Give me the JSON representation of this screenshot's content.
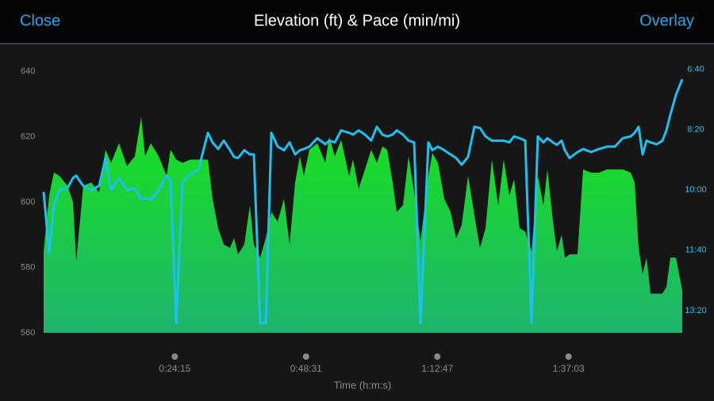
{
  "header": {
    "left_button": "Close",
    "title": "Elevation (ft) & Pace (min/mi)",
    "right_button": "Overlay"
  },
  "chart_data": {
    "type": "area",
    "x_label": "Time (h:m:s)",
    "x": [
      0,
      62,
      114,
      176,
      264,
      326,
      361,
      396,
      440,
      528,
      616,
      686,
      748,
      836,
      924,
      1012,
      1082,
      1126,
      1188,
      1276,
      1364,
      1408,
      1470,
      1540,
      1628,
      1716,
      1822,
      1874,
      1936,
      1998,
      2068,
      2112,
      2156,
      2226,
      2288,
      2332,
      2402,
      2464,
      2526,
      2596,
      2666,
      2728,
      2790,
      2842,
      2886,
      2948,
      3036,
      3124,
      3168,
      3230,
      3300,
      3388,
      3432,
      3494,
      3564,
      3634,
      3696,
      3758,
      3810,
      3872,
      3916,
      3986,
      4048,
      4110,
      4180,
      4268,
      4312,
      4374,
      4444,
      4514,
      4576,
      4638,
      4708,
      4778,
      4840,
      4902,
      4972,
      5042,
      5104,
      5166,
      5218,
      5280,
      5342,
      5412,
      5482,
      5544,
      5588,
      5650,
      5694,
      5746,
      5782,
      5834,
      5922,
      5984,
      6072,
      6160,
      6248,
      6336,
      6424,
      6512,
      6556,
      6600,
      6644,
      6688,
      6732,
      6802,
      6864,
      6908,
      6952,
      7014,
      7084
    ],
    "xlim": [
      0,
      7084
    ],
    "xticks": [
      {
        "value": 1455,
        "label": "0:24:15"
      },
      {
        "value": 2911,
        "label": "0:48:31"
      },
      {
        "value": 4367,
        "label": "1:12:47"
      },
      {
        "value": 5823,
        "label": "1:37:03"
      }
    ],
    "ylim": [
      560,
      640
    ],
    "yticks": [
      560,
      580,
      600,
      620,
      640
    ],
    "y2lim": [
      837,
      403
    ],
    "y2ticks": [
      {
        "value": 400,
        "label": "6:40"
      },
      {
        "value": 500,
        "label": "8:20"
      },
      {
        "value": 600,
        "label": "10:00"
      },
      {
        "value": 700,
        "label": "11:40"
      },
      {
        "value": 800,
        "label": "13:20"
      }
    ],
    "series": [
      {
        "type": "area",
        "color": "#18e21c",
        "values": [
          585,
          602,
          609,
          608,
          605,
          600,
          582,
          592,
          605,
          606,
          603,
          616,
          612,
          618,
          611,
          614,
          626,
          614,
          618,
          614,
          608,
          616,
          613,
          612,
          613,
          613,
          613,
          601,
          592,
          587,
          586,
          589,
          584,
          587,
          599,
          587,
          583,
          589,
          597,
          594,
          601,
          587,
          606,
          614,
          608,
          616,
          618,
          612,
          620,
          614,
          619,
          608,
          613,
          604,
          610,
          616,
          612,
          617,
          616,
          606,
          597,
          599,
          614,
          603,
          588,
          608,
          615,
          612,
          601,
          597,
          589,
          593,
          608,
          596,
          586,
          592,
          613,
          599,
          613,
          602,
          607,
          592,
          591,
          585,
          608,
          599,
          610,
          594,
          585,
          590,
          583,
          584,
          584,
          610,
          609,
          609,
          610,
          610,
          610,
          609,
          606,
          586,
          578,
          583,
          572,
          572,
          572,
          574,
          583,
          583,
          573
        ]
      },
      {
        "type": "line",
        "axis": "y2",
        "color": "#1ec0ee",
        "values": [
          603,
          705,
          626,
          600,
          597,
          580,
          576,
          584,
          593,
          600,
          593,
          547,
          600,
          580,
          600,
          597,
          616,
          613,
          616,
          600,
          576,
          584,
          821,
          587,
          574,
          567,
          505,
          521,
          532,
          518,
          534,
          545,
          547,
          534,
          541,
          541,
          821,
          821,
          505,
          528,
          534,
          521,
          541,
          534,
          532,
          528,
          514,
          524,
          518,
          521,
          501,
          505,
          508,
          501,
          508,
          518,
          495,
          508,
          511,
          508,
          501,
          508,
          518,
          521,
          821,
          521,
          534,
          528,
          534,
          541,
          547,
          558,
          545,
          495,
          497,
          511,
          518,
          518,
          518,
          521,
          511,
          514,
          518,
          821,
          511,
          521,
          514,
          521,
          525,
          518,
          534,
          547,
          537,
          532,
          537,
          532,
          528,
          528,
          514,
          511,
          505,
          495,
          541,
          518,
          521,
          524,
          518,
          501,
          475,
          442,
          416
        ]
      }
    ]
  }
}
